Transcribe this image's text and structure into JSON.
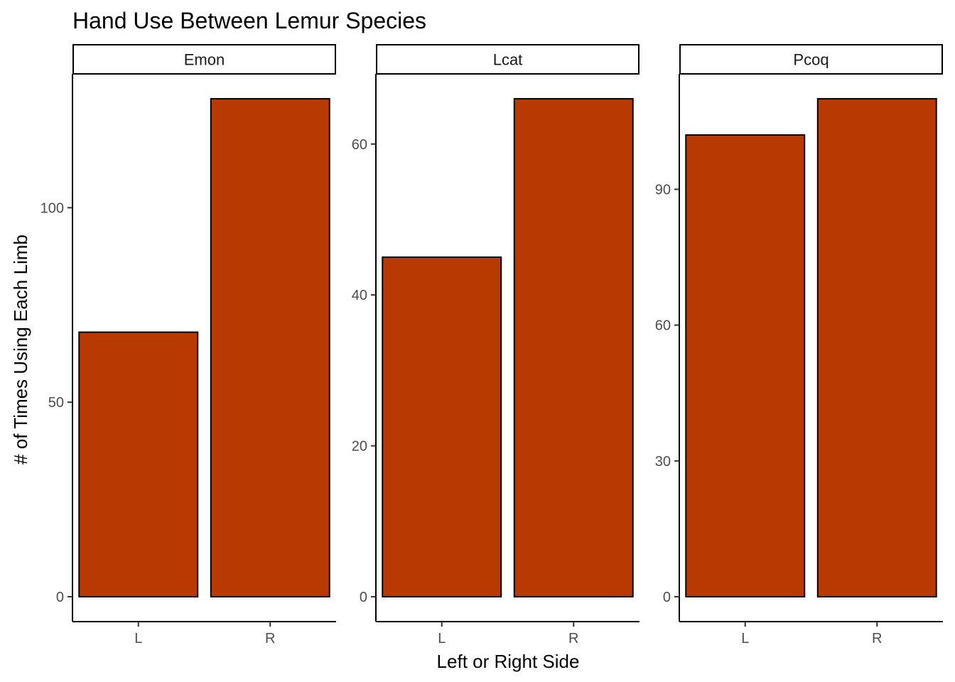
{
  "chart_data": {
    "type": "bar",
    "title": "Hand Use Between Lemur Species",
    "xlabel": "Left or Right Side",
    "ylabel": "# of Times Using Each Limb",
    "bar_color": "#B93A00",
    "bar_outline": "#000000",
    "grid": false,
    "panels": [
      {
        "facet": "Emon",
        "categories": [
          "L",
          "R"
        ],
        "values": [
          68,
          128
        ],
        "ylim": [
          -6.4,
          134.4
        ],
        "yticks": [
          0,
          50,
          100
        ]
      },
      {
        "facet": "Lcat",
        "categories": [
          "L",
          "R"
        ],
        "values": [
          45,
          66
        ],
        "ylim": [
          -3.3,
          69.3
        ],
        "yticks": [
          0,
          20,
          40,
          60
        ]
      },
      {
        "facet": "Pcoq",
        "categories": [
          "L",
          "R"
        ],
        "values": [
          102,
          110
        ],
        "ylim": [
          -5.5,
          115.5
        ],
        "yticks": [
          0,
          30,
          60,
          90
        ]
      }
    ]
  }
}
